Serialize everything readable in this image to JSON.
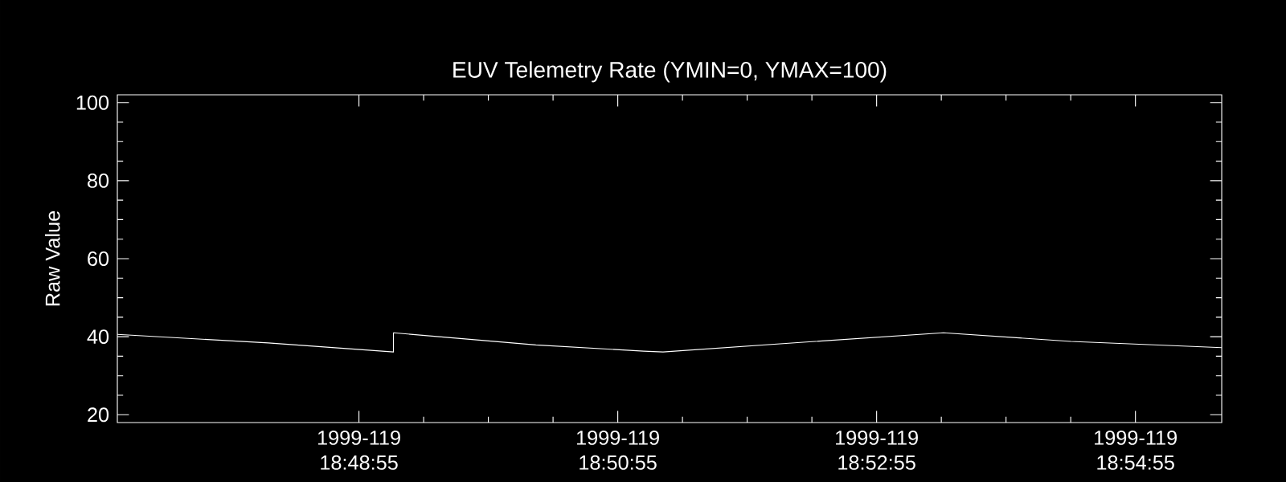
{
  "chart_data": {
    "type": "line",
    "title": "EUV Telemetry Rate (YMIN=0, YMAX=100)",
    "ylabel": "Raw Value",
    "x": [
      "1999-04-29T18:47:03",
      "1999-04-29T18:48:13",
      "1999-04-29T18:49:11",
      "1999-04-29T18:49:11",
      "1999-04-29T18:50:17",
      "1999-04-29T18:51:07",
      "1999-04-29T18:51:16",
      "1999-04-29T18:52:21",
      "1999-04-29T18:53:26",
      "1999-04-29T18:54:25",
      "1999-04-29T18:55:35"
    ],
    "values": [
      40.6,
      38.4,
      36.1,
      41.0,
      37.9,
      36.3,
      36.1,
      38.6,
      41.0,
      38.8,
      37.2
    ],
    "color": "#ffffff",
    "xlim": [
      "1999-04-29T18:47:03",
      "1999-04-29T18:55:35"
    ],
    "ylim": [
      18,
      102
    ],
    "xticks": [
      {
        "value": "1999-04-29T18:48:55",
        "label": "1999-119 18:48:55"
      },
      {
        "value": "1999-04-29T18:50:55",
        "label": "1999-119 18:50:55"
      },
      {
        "value": "1999-04-29T18:52:55",
        "label": "1999-119 18:52:55"
      },
      {
        "value": "1999-04-29T18:54:55",
        "label": "1999-119 18:54:55"
      }
    ],
    "yticks": [
      20,
      40,
      60,
      80,
      100
    ]
  }
}
